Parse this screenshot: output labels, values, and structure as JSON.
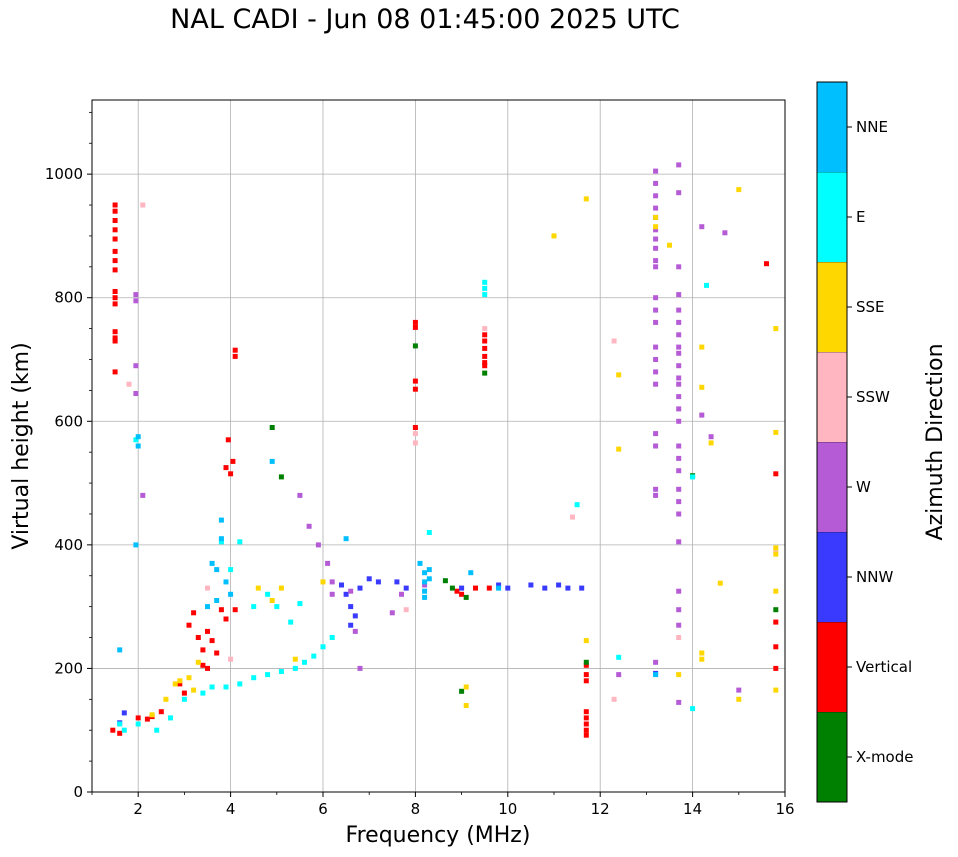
{
  "chart_data": {
    "type": "scatter",
    "title": "NAL CADI - Jun 08 01:45:00 2025 UTC",
    "xlabel": "Frequency (MHz)",
    "ylabel": "Virtual height (km)",
    "xlim": [
      1,
      16
    ],
    "ylim": [
      0,
      1120
    ],
    "xticks": [
      2,
      4,
      6,
      8,
      10,
      12,
      14,
      16
    ],
    "yticks": [
      0,
      200,
      400,
      600,
      800,
      1000
    ],
    "grid": true,
    "colorbar": {
      "label": "Azimuth Direction",
      "categories": [
        {
          "name": "X-mode",
          "color": "#008000"
        },
        {
          "name": "Vertical",
          "color": "#ff0000"
        },
        {
          "name": "NNW",
          "color": "#3a3aff"
        },
        {
          "name": "W",
          "color": "#b55bd6"
        },
        {
          "name": "SSW",
          "color": "#ffb6c1"
        },
        {
          "name": "SSE",
          "color": "#ffd700"
        },
        {
          "name": "E",
          "color": "#00ffff"
        },
        {
          "name": "NNE",
          "color": "#00bfff"
        }
      ]
    },
    "series": [
      {
        "name": "Vertical",
        "points": [
          [
            1.5,
            950
          ],
          [
            1.5,
            940
          ],
          [
            1.5,
            925
          ],
          [
            1.5,
            910
          ],
          [
            1.5,
            895
          ],
          [
            1.5,
            875
          ],
          [
            1.5,
            860
          ],
          [
            1.5,
            845
          ],
          [
            1.5,
            810
          ],
          [
            1.5,
            800
          ],
          [
            1.5,
            790
          ],
          [
            1.5,
            745
          ],
          [
            1.5,
            735
          ],
          [
            1.5,
            730
          ],
          [
            1.5,
            680
          ],
          [
            1.45,
            100
          ],
          [
            1.6,
            95
          ],
          [
            2.0,
            120
          ],
          [
            2.2,
            118
          ],
          [
            2.3,
            122
          ],
          [
            2.5,
            130
          ],
          [
            2.9,
            175
          ],
          [
            3.0,
            160
          ],
          [
            3.1,
            270
          ],
          [
            3.2,
            290
          ],
          [
            3.3,
            250
          ],
          [
            3.4,
            230
          ],
          [
            3.4,
            205
          ],
          [
            3.5,
            260
          ],
          [
            3.5,
            200
          ],
          [
            3.6,
            245
          ],
          [
            3.7,
            225
          ],
          [
            3.8,
            295
          ],
          [
            3.9,
            280
          ],
          [
            4.1,
            295
          ],
          [
            3.95,
            570
          ],
          [
            4.05,
            535
          ],
          [
            4.1,
            715
          ],
          [
            4.1,
            705
          ],
          [
            3.9,
            525
          ],
          [
            4.0,
            515
          ],
          [
            8.0,
            760
          ],
          [
            8.0,
            752
          ],
          [
            8.0,
            665
          ],
          [
            8.0,
            652
          ],
          [
            8.0,
            590
          ],
          [
            9.5,
            740
          ],
          [
            9.5,
            730
          ],
          [
            9.5,
            718
          ],
          [
            9.5,
            705
          ],
          [
            9.5,
            695
          ],
          [
            9.5,
            690
          ],
          [
            8.9,
            325
          ],
          [
            9.0,
            320
          ],
          [
            9.3,
            330
          ],
          [
            9.6,
            330
          ],
          [
            11.7,
            205
          ],
          [
            11.7,
            190
          ],
          [
            11.7,
            180
          ],
          [
            11.7,
            130
          ],
          [
            11.7,
            120
          ],
          [
            11.7,
            110
          ],
          [
            11.7,
            100
          ],
          [
            11.7,
            92
          ],
          [
            15.8,
            515
          ],
          [
            15.8,
            275
          ],
          [
            15.8,
            235
          ],
          [
            15.8,
            200
          ],
          [
            15.6,
            855
          ]
        ]
      },
      {
        "name": "X-mode",
        "points": [
          [
            4.9,
            590
          ],
          [
            8.0,
            722
          ],
          [
            9.5,
            678
          ],
          [
            9.1,
            315
          ],
          [
            9.0,
            163
          ],
          [
            8.65,
            342
          ],
          [
            8.8,
            330
          ],
          [
            11.7,
            210
          ],
          [
            14.0,
            512
          ],
          [
            15.8,
            295
          ],
          [
            5.1,
            510
          ]
        ]
      },
      {
        "name": "NNW",
        "points": [
          [
            1.6,
            112
          ],
          [
            1.7,
            128
          ],
          [
            6.4,
            335
          ],
          [
            6.5,
            320
          ],
          [
            6.6,
            300
          ],
          [
            6.7,
            285
          ],
          [
            6.6,
            270
          ],
          [
            6.8,
            330
          ],
          [
            7.0,
            345
          ],
          [
            7.2,
            340
          ],
          [
            7.6,
            340
          ],
          [
            7.8,
            330
          ],
          [
            9.0,
            330
          ],
          [
            9.8,
            335
          ],
          [
            10.0,
            330
          ],
          [
            10.5,
            335
          ],
          [
            10.8,
            330
          ],
          [
            11.1,
            335
          ],
          [
            11.3,
            330
          ],
          [
            11.6,
            330
          ],
          [
            13.2,
            192
          ],
          [
            13.2,
            930
          ]
        ]
      },
      {
        "name": "W",
        "points": [
          [
            1.95,
            805
          ],
          [
            1.95,
            795
          ],
          [
            1.95,
            690
          ],
          [
            1.95,
            645
          ],
          [
            2.1,
            480
          ],
          [
            5.5,
            480
          ],
          [
            5.7,
            430
          ],
          [
            5.9,
            400
          ],
          [
            6.1,
            370
          ],
          [
            6.2,
            340
          ],
          [
            6.2,
            320
          ],
          [
            6.6,
            325
          ],
          [
            6.7,
            260
          ],
          [
            6.8,
            200
          ],
          [
            7.5,
            290
          ],
          [
            7.7,
            320
          ],
          [
            8.2,
            335
          ],
          [
            13.2,
            1005
          ],
          [
            13.2,
            985
          ],
          [
            13.2,
            965
          ],
          [
            13.2,
            945
          ],
          [
            13.2,
            910
          ],
          [
            13.2,
            895
          ],
          [
            13.2,
            880
          ],
          [
            13.2,
            860
          ],
          [
            13.2,
            850
          ],
          [
            13.2,
            800
          ],
          [
            13.2,
            780
          ],
          [
            13.2,
            760
          ],
          [
            13.2,
            720
          ],
          [
            13.2,
            700
          ],
          [
            13.2,
            680
          ],
          [
            13.2,
            660
          ],
          [
            13.2,
            580
          ],
          [
            13.2,
            560
          ],
          [
            13.2,
            490
          ],
          [
            13.2,
            480
          ],
          [
            13.2,
            210
          ],
          [
            13.7,
            1015
          ],
          [
            13.7,
            970
          ],
          [
            13.7,
            850
          ],
          [
            13.7,
            805
          ],
          [
            13.7,
            780
          ],
          [
            13.7,
            760
          ],
          [
            13.7,
            740
          ],
          [
            13.7,
            720
          ],
          [
            13.7,
            710
          ],
          [
            13.7,
            690
          ],
          [
            13.7,
            670
          ],
          [
            13.7,
            660
          ],
          [
            13.7,
            640
          ],
          [
            13.7,
            620
          ],
          [
            13.7,
            600
          ],
          [
            13.7,
            560
          ],
          [
            13.7,
            540
          ],
          [
            13.7,
            520
          ],
          [
            13.7,
            490
          ],
          [
            13.7,
            470
          ],
          [
            13.7,
            450
          ],
          [
            13.7,
            405
          ],
          [
            13.7,
            325
          ],
          [
            13.7,
            295
          ],
          [
            13.7,
            270
          ],
          [
            13.7,
            145
          ],
          [
            14.2,
            915
          ],
          [
            14.2,
            610
          ],
          [
            14.7,
            905
          ],
          [
            14.4,
            575
          ],
          [
            15.0,
            165
          ],
          [
            12.4,
            190
          ]
        ]
      },
      {
        "name": "SSW",
        "points": [
          [
            1.8,
            660
          ],
          [
            2.1,
            950
          ],
          [
            3.5,
            330
          ],
          [
            4.0,
            215
          ],
          [
            7.8,
            295
          ],
          [
            8.0,
            580
          ],
          [
            8.0,
            565
          ],
          [
            9.5,
            750
          ],
          [
            11.4,
            445
          ],
          [
            12.3,
            730
          ],
          [
            12.3,
            150
          ],
          [
            13.7,
            250
          ],
          [
            15.8,
            390
          ]
        ]
      },
      {
        "name": "SSE",
        "points": [
          [
            2.3,
            125
          ],
          [
            2.6,
            150
          ],
          [
            2.8,
            175
          ],
          [
            2.9,
            180
          ],
          [
            3.1,
            185
          ],
          [
            3.2,
            165
          ],
          [
            3.3,
            210
          ],
          [
            4.6,
            330
          ],
          [
            4.9,
            310
          ],
          [
            5.1,
            330
          ],
          [
            5.4,
            215
          ],
          [
            6.0,
            340
          ],
          [
            9.1,
            170
          ],
          [
            9.1,
            140
          ],
          [
            11.7,
            960
          ],
          [
            11.7,
            245
          ],
          [
            11.0,
            900
          ],
          [
            12.4,
            675
          ],
          [
            12.4,
            555
          ],
          [
            13.5,
            885
          ],
          [
            14.2,
            720
          ],
          [
            14.2,
            655
          ],
          [
            14.4,
            565
          ],
          [
            14.6,
            338
          ],
          [
            14.2,
            225
          ],
          [
            14.2,
            215
          ],
          [
            13.7,
            190
          ],
          [
            15.0,
            150
          ],
          [
            15.0,
            975
          ],
          [
            15.8,
            750
          ],
          [
            15.8,
            582
          ],
          [
            15.8,
            395
          ],
          [
            15.8,
            385
          ],
          [
            15.8,
            325
          ],
          [
            15.8,
            165
          ],
          [
            13.2,
            930
          ],
          [
            13.2,
            915
          ]
        ]
      },
      {
        "name": "E",
        "points": [
          [
            1.6,
            110
          ],
          [
            1.7,
            100
          ],
          [
            2.0,
            110
          ],
          [
            2.4,
            100
          ],
          [
            2.7,
            120
          ],
          [
            3.0,
            150
          ],
          [
            3.4,
            160
          ],
          [
            3.6,
            170
          ],
          [
            3.9,
            170
          ],
          [
            4.2,
            175
          ],
          [
            4.5,
            185
          ],
          [
            4.8,
            190
          ],
          [
            5.1,
            195
          ],
          [
            5.4,
            200
          ],
          [
            5.6,
            210
          ],
          [
            5.8,
            220
          ],
          [
            6.0,
            235
          ],
          [
            6.2,
            250
          ],
          [
            5.0,
            300
          ],
          [
            5.5,
            305
          ],
          [
            5.3,
            275
          ],
          [
            4.5,
            300
          ],
          [
            4.8,
            320
          ],
          [
            3.8,
            405
          ],
          [
            4.2,
            405
          ],
          [
            4.0,
            360
          ],
          [
            9.5,
            825
          ],
          [
            9.5,
            815
          ],
          [
            9.5,
            805
          ],
          [
            8.3,
            420
          ],
          [
            11.5,
            465
          ],
          [
            12.4,
            218
          ],
          [
            14.3,
            820
          ],
          [
            14.0,
            135
          ],
          [
            14.0,
            510
          ],
          [
            1.95,
            570
          ]
        ]
      },
      {
        "name": "NNE",
        "points": [
          [
            1.6,
            230
          ],
          [
            1.95,
            400
          ],
          [
            2.0,
            575
          ],
          [
            2.0,
            560
          ],
          [
            3.6,
            370
          ],
          [
            3.7,
            360
          ],
          [
            3.8,
            440
          ],
          [
            3.8,
            410
          ],
          [
            3.9,
            340
          ],
          [
            4.0,
            320
          ],
          [
            3.5,
            300
          ],
          [
            3.7,
            310
          ],
          [
            4.9,
            535
          ],
          [
            6.5,
            410
          ],
          [
            8.1,
            370
          ],
          [
            8.2,
            355
          ],
          [
            8.2,
            340
          ],
          [
            8.2,
            325
          ],
          [
            8.2,
            315
          ],
          [
            8.3,
            360
          ],
          [
            8.3,
            345
          ],
          [
            9.2,
            355
          ],
          [
            9.8,
            330
          ],
          [
            13.2,
            190
          ]
        ]
      }
    ]
  }
}
